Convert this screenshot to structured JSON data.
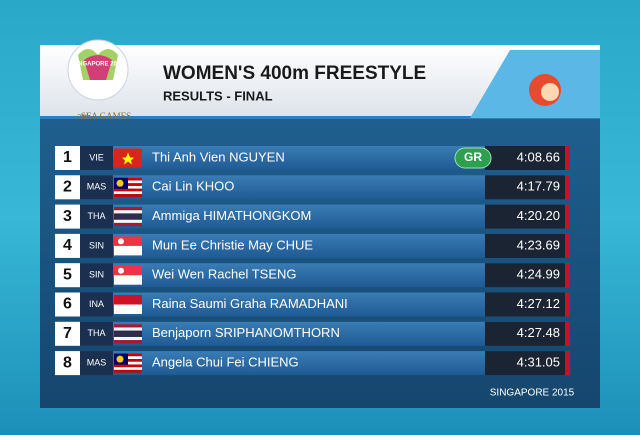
{
  "header": {
    "title": "WOMEN'S 400m FREESTYLE",
    "subtitle": "RESULTS - FINAL"
  },
  "logo": {
    "host": "SINGAPORE 2015",
    "edition": "28th",
    "name": "SEA GAMES"
  },
  "rows": [
    {
      "rank": 1,
      "country": "VIE",
      "name": "Thi Anh Vien NGUYEN",
      "badge": "GR",
      "time": "4:08.66"
    },
    {
      "rank": 2,
      "country": "MAS",
      "name": "Cai Lin KHOO",
      "time": "4:17.79"
    },
    {
      "rank": 3,
      "country": "THA",
      "name": "Ammiga HIMATHONGKOM",
      "time": "4:20.20"
    },
    {
      "rank": 4,
      "country": "SIN",
      "name": "Mun Ee Christie May CHUE",
      "time": "4:23.69"
    },
    {
      "rank": 5,
      "country": "SIN",
      "name": "Wei Wen Rachel TSENG",
      "time": "4:24.99"
    },
    {
      "rank": 6,
      "country": "INA",
      "name": "Raina Saumi Graha RAMADHANI",
      "time": "4:27.12"
    },
    {
      "rank": 7,
      "country": "THA",
      "name": "Benjaporn SRIPHANOMTHORN",
      "time": "4:27.48"
    },
    {
      "rank": 8,
      "country": "MAS",
      "name": "Angela Chui Fei CHIENG",
      "time": "4:31.05"
    }
  ],
  "footer": "SINGAPORE 2015"
}
